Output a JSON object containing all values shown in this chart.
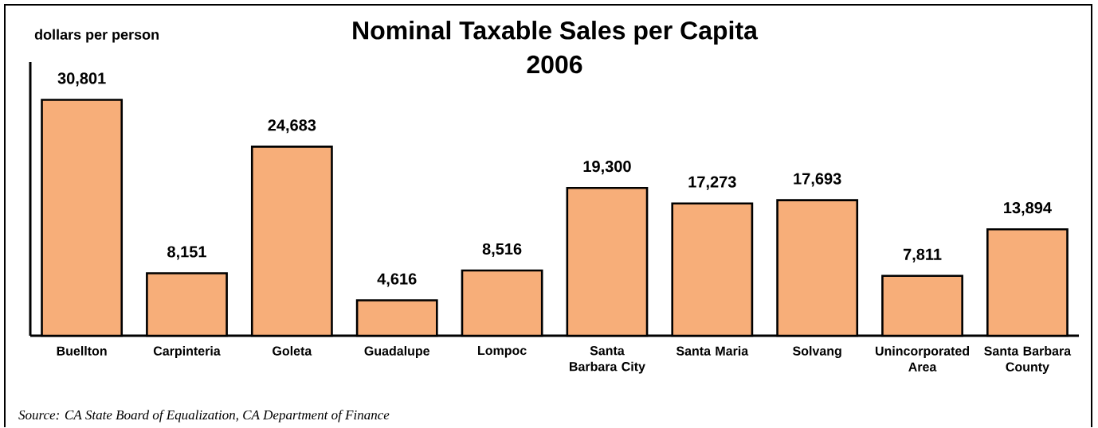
{
  "chart_data": {
    "type": "bar",
    "title": "Nominal Taxable Sales per Capita",
    "subtitle": "2006",
    "ylabel": "dollars per person",
    "categories": [
      "Buellton",
      "Carpinteria",
      "Goleta",
      "Guadalupe",
      "Lompoc",
      "Santa Barbara City",
      "Santa Maria",
      "Solvang",
      "Unincorporated Area",
      "Santa Barbara County"
    ],
    "values": [
      30801,
      8151,
      24683,
      4616,
      8516,
      19300,
      17273,
      17693,
      7811,
      13894
    ],
    "value_labels": [
      "30,801",
      "8,151",
      "24,683",
      "4,616",
      "8,516",
      "19,300",
      "17,273",
      "17,693",
      "7,811",
      "13,894"
    ],
    "color": "#f7ae79",
    "annotations": [
      "Source: CA State Board of Equalization, CA Department of Finance"
    ]
  }
}
